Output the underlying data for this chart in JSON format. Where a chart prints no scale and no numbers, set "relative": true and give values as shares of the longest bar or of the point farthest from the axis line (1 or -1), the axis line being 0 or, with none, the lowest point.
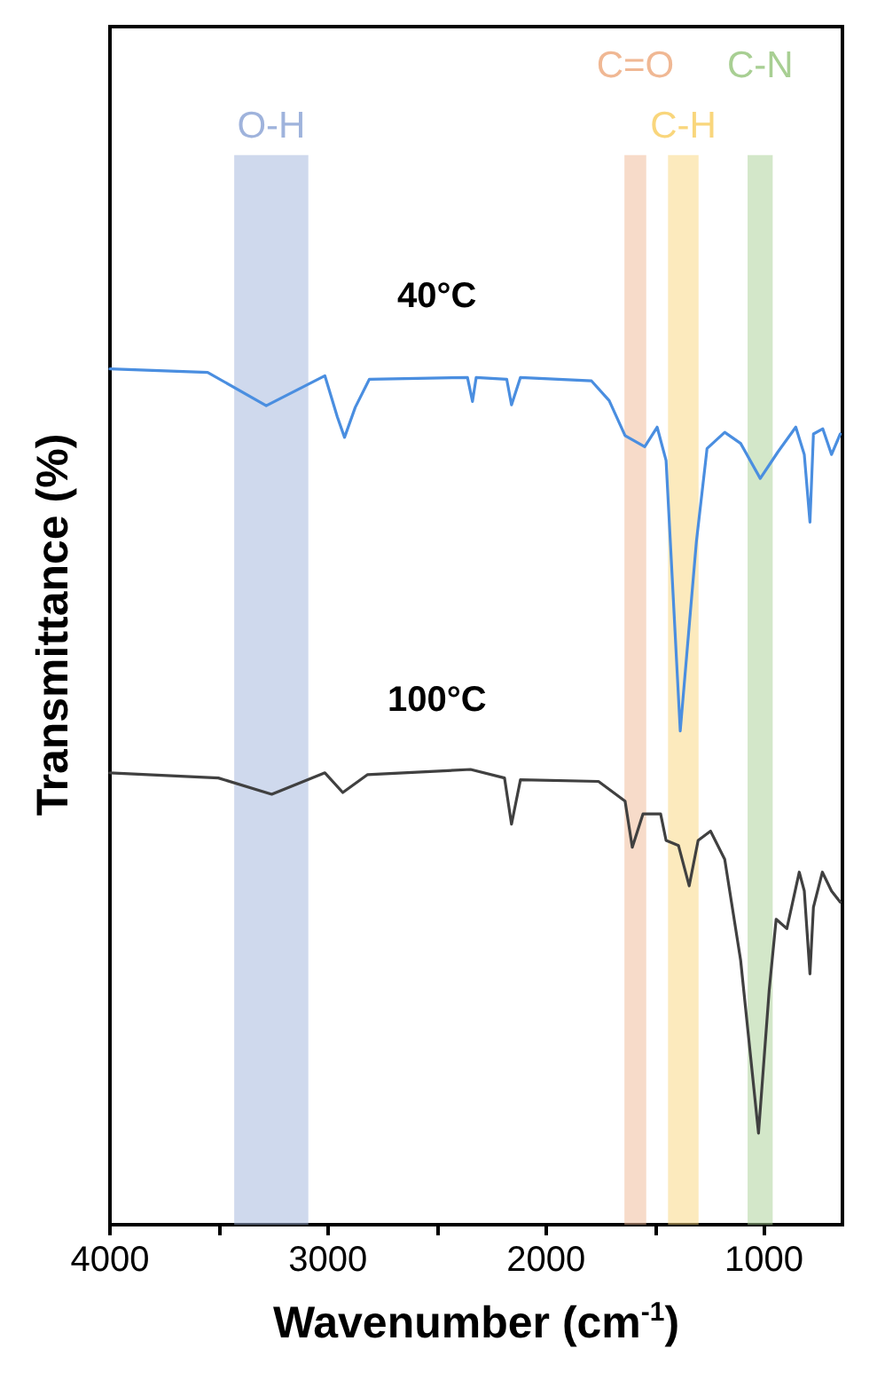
{
  "chart_data": {
    "type": "line",
    "relative": true,
    "xlabel": "Wavenumber (cm$^{-1}$)",
    "ylabel": "Transmittance (%)",
    "xlim": [
      4000,
      640
    ],
    "xticks": [
      4000,
      {
        "value": 3500,
        "label": null
      },
      3000,
      {
        "value": 2500,
        "label": null
      },
      2000,
      {
        "value": 1500,
        "label": null
      },
      1000
    ],
    "marker": "none",
    "line_style": "solid",
    "grid": false,
    "legend": false,
    "series": [
      {
        "name": "40°C",
        "color": "#4a8ee0",
        "x": [
          4000,
          3552,
          3283,
          3014,
          2957,
          2924,
          2875,
          2810,
          2360,
          2337,
          2320,
          2180,
          2158,
          2117,
          1791,
          1710,
          1637,
          1547,
          1490,
          1449,
          1384,
          1310,
          1261,
          1180,
          1107,
          1017,
          936,
          854,
          815,
          789,
          773,
          730,
          690,
          650
        ],
        "values": [
          1.0,
          0.996,
          0.957,
          0.992,
          0.944,
          0.92,
          0.955,
          0.988,
          0.99,
          0.962,
          0.99,
          0.988,
          0.958,
          0.99,
          0.986,
          0.963,
          0.922,
          0.909,
          0.932,
          0.893,
          0.577,
          0.798,
          0.907,
          0.926,
          0.913,
          0.872,
          0.903,
          0.932,
          0.9,
          0.821,
          0.924,
          0.93,
          0.9,
          0.924
        ]
      },
      {
        "name": "100°C",
        "color": "#404040",
        "x": [
          4000,
          3503,
          3258,
          3014,
          2932,
          2818,
          2346,
          2190,
          2158,
          2117,
          1759,
          1637,
          1604,
          1555,
          1474,
          1449,
          1392,
          1343,
          1302,
          1245,
          1180,
          1107,
          1025,
          976,
          944,
          895,
          838,
          815,
          789,
          773,
          732,
          690,
          650
        ],
        "values": [
          0.528,
          0.522,
          0.503,
          0.528,
          0.505,
          0.526,
          0.532,
          0.522,
          0.468,
          0.52,
          0.518,
          0.495,
          0.441,
          0.48,
          0.48,
          0.449,
          0.443,
          0.396,
          0.449,
          0.46,
          0.427,
          0.309,
          0.107,
          0.274,
          0.357,
          0.346,
          0.412,
          0.39,
          0.293,
          0.371,
          0.412,
          0.39,
          0.377
        ]
      }
    ],
    "bands": [
      {
        "axis": "x",
        "from": 3430,
        "to": 3090,
        "label": "O-H",
        "color": "#9fb3dc"
      },
      {
        "axis": "x",
        "from": 1640,
        "to": 1540,
        "label": "C=O",
        "color": "#f0b894"
      },
      {
        "axis": "x",
        "from": 1440,
        "to": 1300,
        "label": "C-H",
        "color": "#f9d67c"
      },
      {
        "axis": "x",
        "from": 1075,
        "to": 960,
        "label": "C-N",
        "color": "#a8cf93"
      }
    ]
  }
}
